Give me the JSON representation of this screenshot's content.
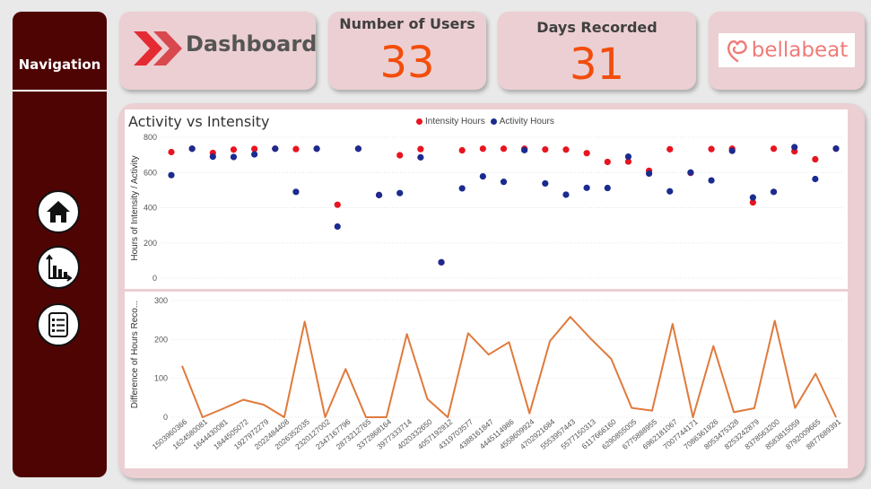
{
  "nav": {
    "title": "Navigation"
  },
  "header": {
    "dashboard_title": "Dashboard"
  },
  "kpis": {
    "users_label": "Number of Users",
    "users_value": "33",
    "days_label": "Days Recorded",
    "days_value": "31"
  },
  "brand": {
    "name": "bellabeat"
  },
  "colors": {
    "nav_bg": "#4f0404",
    "card_bg": "#eccfd2",
    "accent": "#f24d0c",
    "intensity": "#e8141f",
    "activity": "#1b2b8f",
    "line": "#e07a3c",
    "brand": "#f07b78"
  },
  "chart_data": [
    {
      "type": "scatter",
      "title": "Activity vs Intensity",
      "xlabel": "",
      "ylabel": "Hours of Intensity / Activity",
      "ylim": [
        0,
        800
      ],
      "yticks": [
        0,
        200,
        400,
        600,
        800
      ],
      "legend_position": "top",
      "categories": [
        "1503960366",
        "1624580081",
        "1644430081",
        "1844505072",
        "1927972279",
        "2022484408",
        "2026352035",
        "2320127002",
        "2347167796",
        "2873212765",
        "3372868164",
        "3977333714",
        "4020332650",
        "4057192912",
        "4319703577",
        "4388161847",
        "4445114986",
        "4558609924",
        "4702921684",
        "5553957443",
        "5577150313",
        "6117666160",
        "6290855005",
        "6775888955",
        "6962181067",
        "7007744171",
        "7086361926",
        "8053475328",
        "8253242879",
        "8378563200",
        "8583815059",
        "8792009665",
        "8877689391"
      ],
      "series": [
        {
          "name": "Intensity Hours",
          "color": "#e8141f",
          "values": [
            716,
            735,
            711,
            730,
            734,
            735,
            733,
            735,
            417,
            735,
            472,
            698,
            733,
            90,
            726,
            735,
            735,
            735,
            731,
            730,
            710,
            660,
            662,
            610,
            732,
            598,
            733,
            735,
            430,
            735,
            720,
            675,
            735
          ]
        },
        {
          "name": "Activity Hours",
          "color": "#1b2b8f",
          "values": [
            585,
            735,
            690,
            688,
            703,
            735,
            490,
            735,
            293,
            735,
            472,
            483,
            686,
            90,
            510,
            578,
            547,
            727,
            538,
            474,
            513,
            512,
            690,
            594,
            493,
            600,
            555,
            723,
            458,
            490,
            744,
            563,
            736
          ]
        }
      ]
    },
    {
      "type": "line",
      "title": "",
      "xlabel": "",
      "ylabel": "Difference of Hours Reco...",
      "ylim": [
        0,
        300
      ],
      "yticks": [
        0,
        100,
        200,
        300
      ],
      "color": "#e07a3c",
      "categories": [
        "1503960366",
        "1624580081",
        "1644430081",
        "1844505072",
        "1927972279",
        "2022484408",
        "2026352035",
        "2320127002",
        "2347167796",
        "2873212765",
        "3372868164",
        "3977333714",
        "4020332650",
        "4057192912",
        "4319703577",
        "4388161847",
        "4445114986",
        "4558609924",
        "4702921684",
        "5553957443",
        "5577150313",
        "6117666160",
        "6290855005",
        "6775888955",
        "6962181067",
        "7007744171",
        "7086361926",
        "8053475328",
        "8253242879",
        "8378563200",
        "8583815059",
        "8792009665",
        "8877689391"
      ],
      "values": [
        132,
        0,
        22,
        45,
        32,
        0,
        246,
        0,
        124,
        0,
        0,
        214,
        47,
        0,
        216,
        161,
        193,
        10,
        196,
        258,
        202,
        150,
        24,
        17,
        240,
        0,
        183,
        13,
        23,
        248,
        24,
        112,
        0
      ]
    }
  ]
}
